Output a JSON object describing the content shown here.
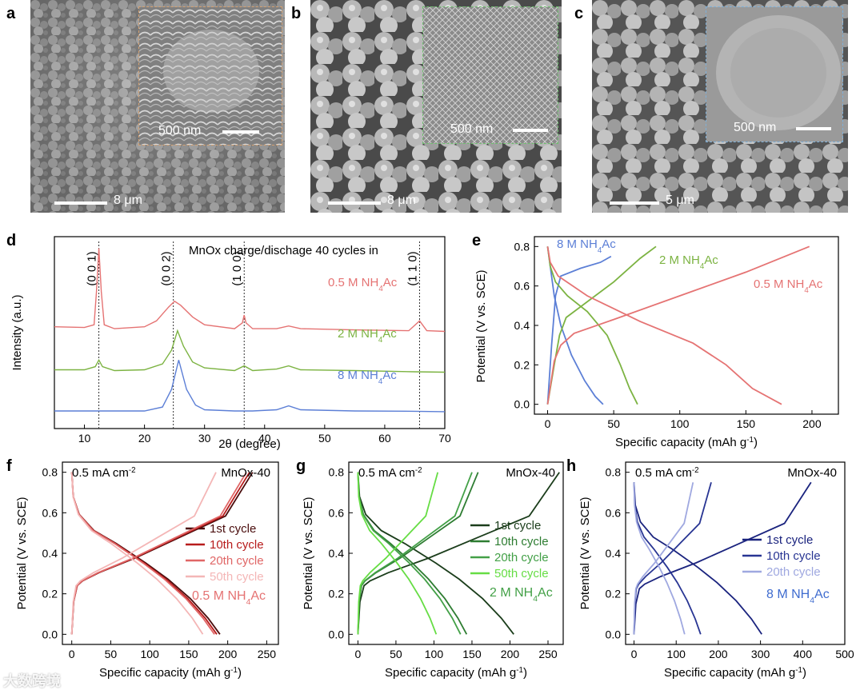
{
  "panels": {
    "a": "a",
    "b": "b",
    "c": "c",
    "d": "d",
    "e": "e",
    "f": "f",
    "g": "g",
    "h": "h"
  },
  "sem": {
    "a": {
      "inset_scale": "500 nm",
      "main_scale": "8 μm",
      "inset_border": "#d4a070"
    },
    "b": {
      "inset_scale": "500 nm",
      "main_scale": "8 μm",
      "inset_border": "#6fbf6f"
    },
    "c": {
      "inset_scale": "500 nm",
      "main_scale": "5 μm",
      "inset_border": "#7fb0d8"
    }
  },
  "watermark": "大数跨境",
  "chart_data": [
    {
      "id": "d",
      "type": "line",
      "title": "MnOx charge/dischage 40 cycles  in",
      "xlabel": "2θ (degree)",
      "ylabel": "Intensity (a.u.)",
      "xlim": [
        5,
        70
      ],
      "xticks": [
        10,
        20,
        30,
        40,
        50,
        60,
        70
      ],
      "peaks": [
        {
          "x": 12.4,
          "label": "(0 0 1)"
        },
        {
          "x": 24.8,
          "label": "(0 0 2)"
        },
        {
          "x": 36.6,
          "label": "(1 0 0)"
        },
        {
          "x": 65.8,
          "label": "(1 1 0)"
        }
      ],
      "series": [
        {
          "name": "0.5 M NH4Ac",
          "color": "#e57373",
          "offset": 2.0,
          "points": [
            [
              5,
              0.3
            ],
            [
              10,
              0.28
            ],
            [
              11.6,
              0.35
            ],
            [
              12.0,
              1.2
            ],
            [
              12.4,
              2.3
            ],
            [
              12.8,
              1.2
            ],
            [
              13.3,
              0.35
            ],
            [
              15,
              0.25
            ],
            [
              20,
              0.3
            ],
            [
              22,
              0.45
            ],
            [
              24,
              0.8
            ],
            [
              25,
              0.95
            ],
            [
              26,
              0.85
            ],
            [
              28,
              0.55
            ],
            [
              30,
              0.35
            ],
            [
              35,
              0.25
            ],
            [
              36.3,
              0.4
            ],
            [
              36.6,
              0.6
            ],
            [
              36.9,
              0.4
            ],
            [
              38,
              0.25
            ],
            [
              42,
              0.25
            ],
            [
              44,
              0.32
            ],
            [
              46,
              0.25
            ],
            [
              55,
              0.22
            ],
            [
              64,
              0.2
            ],
            [
              65.8,
              0.45
            ],
            [
              67,
              0.2
            ],
            [
              70,
              0.18
            ]
          ]
        },
        {
          "name": "2 M NH4Ac",
          "color": "#7cb342",
          "offset": 1.0,
          "points": [
            [
              5,
              0.2
            ],
            [
              10,
              0.2
            ],
            [
              11.8,
              0.28
            ],
            [
              12.4,
              0.45
            ],
            [
              13.0,
              0.28
            ],
            [
              15,
              0.18
            ],
            [
              20,
              0.2
            ],
            [
              23,
              0.35
            ],
            [
              24.5,
              0.7
            ],
            [
              25.5,
              1.2
            ],
            [
              26.5,
              0.8
            ],
            [
              28,
              0.4
            ],
            [
              30,
              0.25
            ],
            [
              35,
              0.18
            ],
            [
              36.6,
              0.3
            ],
            [
              38,
              0.18
            ],
            [
              42,
              0.22
            ],
            [
              44,
              0.3
            ],
            [
              46,
              0.2
            ],
            [
              55,
              0.18
            ],
            [
              65,
              0.15
            ],
            [
              70,
              0.14
            ]
          ]
        },
        {
          "name": "8 M NH4Ac",
          "color": "#5c7fd6",
          "offset": 0.0,
          "points": [
            [
              5,
              0.15
            ],
            [
              10,
              0.15
            ],
            [
              20,
              0.15
            ],
            [
              23,
              0.25
            ],
            [
              24.5,
              0.7
            ],
            [
              25.7,
              1.45
            ],
            [
              27,
              0.7
            ],
            [
              28.5,
              0.3
            ],
            [
              30,
              0.18
            ],
            [
              35,
              0.15
            ],
            [
              38,
              0.15
            ],
            [
              42,
              0.18
            ],
            [
              44,
              0.28
            ],
            [
              46,
              0.18
            ],
            [
              55,
              0.15
            ],
            [
              65,
              0.14
            ],
            [
              70,
              0.13
            ]
          ]
        }
      ],
      "legend_labels": [
        {
          "text": "0.5 M NH",
          "sub": "4",
          "after": "Ac",
          "color": "#e57373"
        },
        {
          "text": "2 M NH",
          "sub": "4",
          "after": "Ac",
          "color": "#7cb342"
        },
        {
          "text": "8 M NH",
          "sub": "4",
          "after": "Ac",
          "color": "#5c7fd6"
        }
      ]
    },
    {
      "id": "e",
      "type": "line",
      "xlabel": "Specific capacity  (mAh g",
      "xlabel_sup": "-1",
      "xlabel_end": ")",
      "ylabel": "Potential  (V vs. SCE)",
      "xlim": [
        -10,
        220
      ],
      "ylim": [
        -0.05,
        0.85
      ],
      "xticks": [
        0,
        50,
        100,
        150,
        200
      ],
      "yticks": [
        0.0,
        0.2,
        0.4,
        0.6,
        0.8
      ],
      "series": [
        {
          "name": "8 M NH4Ac",
          "color": "#5c7fd6",
          "charge": [
            [
              0,
              0
            ],
            [
              3,
              0.3
            ],
            [
              6,
              0.55
            ],
            [
              10,
              0.65
            ],
            [
              25,
              0.69
            ],
            [
              40,
              0.72
            ],
            [
              48,
              0.75
            ]
          ],
          "discharge": [
            [
              0,
              0.8
            ],
            [
              2,
              0.7
            ],
            [
              5,
              0.55
            ],
            [
              10,
              0.4
            ],
            [
              18,
              0.25
            ],
            [
              28,
              0.12
            ],
            [
              36,
              0.04
            ],
            [
              42,
              0.0
            ]
          ]
        },
        {
          "name": "2 M NH4Ac",
          "color": "#7cb342",
          "charge": [
            [
              0,
              0
            ],
            [
              5,
              0.2
            ],
            [
              9,
              0.35
            ],
            [
              14,
              0.44
            ],
            [
              30,
              0.52
            ],
            [
              50,
              0.62
            ],
            [
              70,
              0.74
            ],
            [
              82,
              0.8
            ]
          ],
          "discharge": [
            [
              0,
              0.8
            ],
            [
              2,
              0.7
            ],
            [
              6,
              0.62
            ],
            [
              15,
              0.55
            ],
            [
              30,
              0.47
            ],
            [
              45,
              0.35
            ],
            [
              55,
              0.2
            ],
            [
              62,
              0.08
            ],
            [
              68,
              0.0
            ]
          ]
        },
        {
          "name": "0.5 M NH4Ac",
          "color": "#e57373",
          "charge": [
            [
              0,
              0
            ],
            [
              5,
              0.22
            ],
            [
              10,
              0.3
            ],
            [
              20,
              0.36
            ],
            [
              50,
              0.43
            ],
            [
              100,
              0.55
            ],
            [
              150,
              0.67
            ],
            [
              198,
              0.8
            ]
          ],
          "discharge": [
            [
              0,
              0.8
            ],
            [
              2,
              0.72
            ],
            [
              8,
              0.65
            ],
            [
              30,
              0.55
            ],
            [
              70,
              0.42
            ],
            [
              110,
              0.31
            ],
            [
              135,
              0.2
            ],
            [
              155,
              0.08
            ],
            [
              177,
              0.0
            ]
          ]
        }
      ],
      "labels": [
        {
          "text": "8 M NH",
          "sub": "4",
          "after": "Ac",
          "color": "#5c7fd6"
        },
        {
          "text": "2 M NH",
          "sub": "4",
          "after": "Ac",
          "color": "#7cb342"
        },
        {
          "text": "0.5 M NH",
          "sub": "4",
          "after": "Ac",
          "color": "#e57373"
        }
      ]
    },
    {
      "id": "f",
      "type": "line",
      "title_left": "0.5 mA cm",
      "title_left_sup": "-2",
      "title_right": "MnOx-40",
      "xlabel": "Specific capacity  (mAh g",
      "xlabel_sup": "-1",
      "xlabel_end": ")",
      "ylabel": "Potential  (V vs. SCE)",
      "xlim": [
        -12,
        265
      ],
      "ylim": [
        -0.05,
        0.85
      ],
      "xticks": [
        0,
        50,
        100,
        150,
        200,
        250
      ],
      "yticks": [
        0.0,
        0.2,
        0.4,
        0.6,
        0.8
      ],
      "electrolyte": {
        "text": "0.5 M NH",
        "sub": "4",
        "after": "Ac",
        "color": "#e57373"
      },
      "series": [
        {
          "name": "1st cycle",
          "color": "#4a0d0d",
          "cap": 232,
          "dcap": 190
        },
        {
          "name": "10th cycle",
          "color": "#b71c1c",
          "cap": 228,
          "dcap": 186
        },
        {
          "name": "20th cycle",
          "color": "#e06666",
          "cap": 224,
          "dcap": 183
        },
        {
          "name": "50th cycle",
          "color": "#f4b6b6",
          "cap": 185,
          "dcap": 168
        }
      ]
    },
    {
      "id": "g",
      "type": "line",
      "title_left": "0.5 mA cm",
      "title_left_sup": "-2",
      "title_right": "MnOx-40",
      "xlabel": "Specific capacity  (mAh g",
      "xlabel_sup": "-1",
      "xlabel_end": ")",
      "ylabel": "Potential  (V vs. SCE)",
      "xlim": [
        -12,
        270
      ],
      "ylim": [
        -0.05,
        0.85
      ],
      "xticks": [
        0,
        50,
        100,
        150,
        200,
        250
      ],
      "yticks": [
        0.0,
        0.2,
        0.4,
        0.6,
        0.8
      ],
      "electrolyte": {
        "text": "2 M NH",
        "sub": "4",
        "after": "Ac",
        "color": "#43a047"
      },
      "series": [
        {
          "name": "1st cycle",
          "color": "#1b3d1b",
          "cap": 265,
          "dcap": 205
        },
        {
          "name": "10th cycle",
          "color": "#2e7d32",
          "cap": 158,
          "dcap": 143
        },
        {
          "name": "20th cycle",
          "color": "#43a047",
          "cap": 150,
          "dcap": 135
        },
        {
          "name": "50th cycle",
          "color": "#66dd44",
          "cap": 105,
          "dcap": 103
        }
      ]
    },
    {
      "id": "h",
      "type": "line",
      "title_left": "0.5 mA cm",
      "title_left_sup": "-2",
      "title_right": "MnOx-40",
      "xlabel": "Specific capacity  (mAh g",
      "xlabel_sup": "-1",
      "xlabel_end": ")",
      "ylabel": "Potential  (V vs. SCE)",
      "xlim": [
        -20,
        500
      ],
      "ylim": [
        -0.05,
        0.85
      ],
      "xticks": [
        0,
        100,
        200,
        300,
        400,
        500
      ],
      "yticks": [
        0.0,
        0.2,
        0.4,
        0.6,
        0.8
      ],
      "electrolyte": {
        "text": "8 M NH",
        "sub": "4",
        "after": "Ac",
        "color": "#3f6ccf"
      },
      "vmax": 0.75,
      "series": [
        {
          "name": "1st cycle",
          "color": "#1a237e",
          "cap": 420,
          "dcap": 303
        },
        {
          "name": "10th cycle",
          "color": "#283593",
          "cap": 183,
          "dcap": 158
        },
        {
          "name": "20th cycle",
          "color": "#9fa8e0",
          "cap": 140,
          "dcap": 120
        }
      ]
    }
  ]
}
